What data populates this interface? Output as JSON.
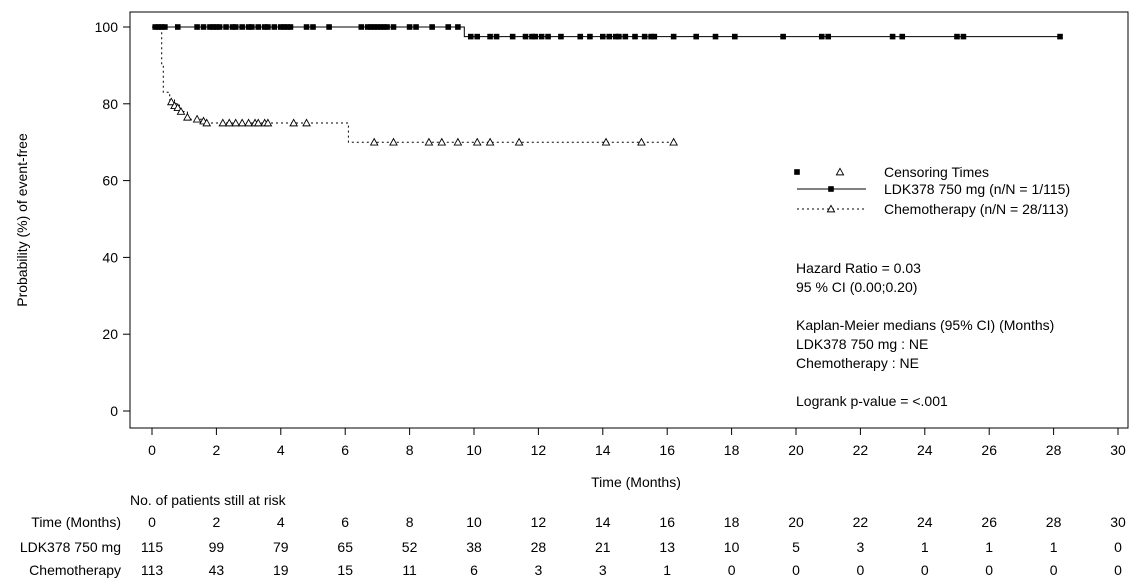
{
  "chart_data": {
    "type": "line",
    "subtype": "kaplan-meier",
    "xlabel": "Time (Months)",
    "ylabel": "Probability (%) of event-free",
    "xlim": [
      0,
      30
    ],
    "ylim": [
      0,
      100
    ],
    "xticks": [
      0,
      2,
      4,
      6,
      8,
      10,
      12,
      14,
      16,
      18,
      20,
      22,
      24,
      26,
      28,
      30
    ],
    "yticks": [
      0,
      20,
      40,
      60,
      80,
      100
    ],
    "grid": false,
    "legend_position": "right",
    "legend": {
      "censor_label": "Censoring Times",
      "entries": [
        "LDK378 750 mg (n/N = 1/115)",
        "Chemotherapy (n/N = 28/113)"
      ]
    },
    "annotations": [
      "Hazard Ratio  = 0.03",
      "95 % CI (0.00;0.20)",
      "Kaplan-Meier medians (95% CI) (Months)",
      "LDK378 750 mg : NE",
      "Chemotherapy : NE",
      "Logrank p-value = <.001"
    ],
    "series": [
      {
        "name": "LDK378 750 mg",
        "line_style": "solid",
        "marker": "square",
        "steps": [
          [
            0,
            100
          ],
          [
            9.7,
            100
          ],
          [
            9.7,
            97.5
          ],
          [
            28.2,
            97.5
          ]
        ],
        "censored": [
          {
            "x": 0.1,
            "y": 100
          },
          {
            "x": 0.2,
            "y": 100
          },
          {
            "x": 0.3,
            "y": 100
          },
          {
            "x": 0.4,
            "y": 100
          },
          {
            "x": 0.8,
            "y": 100
          },
          {
            "x": 1.4,
            "y": 100
          },
          {
            "x": 1.6,
            "y": 100
          },
          {
            "x": 1.8,
            "y": 100
          },
          {
            "x": 1.9,
            "y": 100
          },
          {
            "x": 2.0,
            "y": 100
          },
          {
            "x": 2.1,
            "y": 100
          },
          {
            "x": 2.3,
            "y": 100
          },
          {
            "x": 2.5,
            "y": 100
          },
          {
            "x": 2.6,
            "y": 100
          },
          {
            "x": 2.8,
            "y": 100
          },
          {
            "x": 3.0,
            "y": 100
          },
          {
            "x": 3.1,
            "y": 100
          },
          {
            "x": 3.3,
            "y": 100
          },
          {
            "x": 3.5,
            "y": 100
          },
          {
            "x": 3.6,
            "y": 100
          },
          {
            "x": 3.8,
            "y": 100
          },
          {
            "x": 4.0,
            "y": 100
          },
          {
            "x": 4.1,
            "y": 100
          },
          {
            "x": 4.2,
            "y": 100
          },
          {
            "x": 4.3,
            "y": 100
          },
          {
            "x": 4.8,
            "y": 100
          },
          {
            "x": 5.0,
            "y": 100
          },
          {
            "x": 5.5,
            "y": 100
          },
          {
            "x": 6.5,
            "y": 100
          },
          {
            "x": 6.7,
            "y": 100
          },
          {
            "x": 6.8,
            "y": 100
          },
          {
            "x": 6.9,
            "y": 100
          },
          {
            "x": 7.0,
            "y": 100
          },
          {
            "x": 7.1,
            "y": 100
          },
          {
            "x": 7.2,
            "y": 100
          },
          {
            "x": 7.3,
            "y": 100
          },
          {
            "x": 7.5,
            "y": 100
          },
          {
            "x": 8.0,
            "y": 100
          },
          {
            "x": 8.2,
            "y": 100
          },
          {
            "x": 8.7,
            "y": 100
          },
          {
            "x": 9.2,
            "y": 100
          },
          {
            "x": 9.5,
            "y": 100
          },
          {
            "x": 9.9,
            "y": 97.5
          },
          {
            "x": 10.1,
            "y": 97.5
          },
          {
            "x": 10.5,
            "y": 97.5
          },
          {
            "x": 10.7,
            "y": 97.5
          },
          {
            "x": 11.2,
            "y": 97.5
          },
          {
            "x": 11.6,
            "y": 97.5
          },
          {
            "x": 11.8,
            "y": 97.5
          },
          {
            "x": 11.9,
            "y": 97.5
          },
          {
            "x": 12.1,
            "y": 97.5
          },
          {
            "x": 12.3,
            "y": 97.5
          },
          {
            "x": 12.7,
            "y": 97.5
          },
          {
            "x": 13.3,
            "y": 97.5
          },
          {
            "x": 13.6,
            "y": 97.5
          },
          {
            "x": 14.0,
            "y": 97.5
          },
          {
            "x": 14.2,
            "y": 97.5
          },
          {
            "x": 14.4,
            "y": 97.5
          },
          {
            "x": 14.5,
            "y": 97.5
          },
          {
            "x": 14.7,
            "y": 97.5
          },
          {
            "x": 15.0,
            "y": 97.5
          },
          {
            "x": 15.3,
            "y": 97.5
          },
          {
            "x": 15.5,
            "y": 97.5
          },
          {
            "x": 15.6,
            "y": 97.5
          },
          {
            "x": 16.2,
            "y": 97.5
          },
          {
            "x": 16.9,
            "y": 97.5
          },
          {
            "x": 17.5,
            "y": 97.5
          },
          {
            "x": 18.1,
            "y": 97.5
          },
          {
            "x": 19.6,
            "y": 97.5
          },
          {
            "x": 20.8,
            "y": 97.5
          },
          {
            "x": 21.0,
            "y": 97.5
          },
          {
            "x": 23.0,
            "y": 97.5
          },
          {
            "x": 23.3,
            "y": 97.5
          },
          {
            "x": 25.0,
            "y": 97.5
          },
          {
            "x": 25.2,
            "y": 97.5
          },
          {
            "x": 28.2,
            "y": 97.5
          }
        ]
      },
      {
        "name": "Chemotherapy",
        "line_style": "dotted",
        "marker": "triangle",
        "steps": [
          [
            0,
            100
          ],
          [
            0.3,
            100
          ],
          [
            0.3,
            90
          ],
          [
            0.35,
            90
          ],
          [
            0.35,
            83
          ],
          [
            0.55,
            83
          ],
          [
            0.55,
            81
          ],
          [
            0.7,
            81
          ],
          [
            0.7,
            80
          ],
          [
            0.85,
            80
          ],
          [
            0.85,
            78
          ],
          [
            1.1,
            78
          ],
          [
            1.1,
            76
          ],
          [
            1.6,
            76
          ],
          [
            1.6,
            75
          ],
          [
            6.1,
            75
          ],
          [
            6.1,
            70
          ],
          [
            16.2,
            70
          ]
        ],
        "censored": [
          {
            "x": 0.6,
            "y": 80.5
          },
          {
            "x": 0.7,
            "y": 79.5
          },
          {
            "x": 0.8,
            "y": 79
          },
          {
            "x": 0.9,
            "y": 78
          },
          {
            "x": 1.1,
            "y": 76.5
          },
          {
            "x": 1.4,
            "y": 76
          },
          {
            "x": 1.6,
            "y": 75.5
          },
          {
            "x": 1.7,
            "y": 75
          },
          {
            "x": 2.2,
            "y": 75
          },
          {
            "x": 2.4,
            "y": 75
          },
          {
            "x": 2.6,
            "y": 75
          },
          {
            "x": 2.8,
            "y": 75
          },
          {
            "x": 3.0,
            "y": 75
          },
          {
            "x": 3.2,
            "y": 75
          },
          {
            "x": 3.3,
            "y": 75
          },
          {
            "x": 3.5,
            "y": 75
          },
          {
            "x": 3.6,
            "y": 75
          },
          {
            "x": 4.4,
            "y": 75
          },
          {
            "x": 4.8,
            "y": 75
          },
          {
            "x": 6.9,
            "y": 70
          },
          {
            "x": 7.5,
            "y": 70
          },
          {
            "x": 8.6,
            "y": 70
          },
          {
            "x": 9.0,
            "y": 70
          },
          {
            "x": 9.5,
            "y": 70
          },
          {
            "x": 10.1,
            "y": 70
          },
          {
            "x": 10.5,
            "y": 70
          },
          {
            "x": 11.4,
            "y": 70
          },
          {
            "x": 14.1,
            "y": 70
          },
          {
            "x": 15.2,
            "y": 70
          },
          {
            "x": 16.2,
            "y": 70
          }
        ]
      }
    ],
    "risk_table": {
      "title": "No. of patients still at risk",
      "header_label": "Time (Months)",
      "times": [
        0,
        2,
        4,
        6,
        8,
        10,
        12,
        14,
        16,
        18,
        20,
        22,
        24,
        26,
        28,
        30
      ],
      "rows": [
        {
          "label": "LDK378 750 mg",
          "values": [
            115,
            99,
            79,
            65,
            52,
            38,
            28,
            21,
            13,
            10,
            5,
            3,
            1,
            1,
            1,
            0
          ]
        },
        {
          "label": "Chemotherapy",
          "values": [
            113,
            43,
            19,
            15,
            11,
            6,
            3,
            3,
            1,
            0,
            0,
            0,
            0,
            0,
            0,
            0
          ]
        }
      ]
    }
  }
}
